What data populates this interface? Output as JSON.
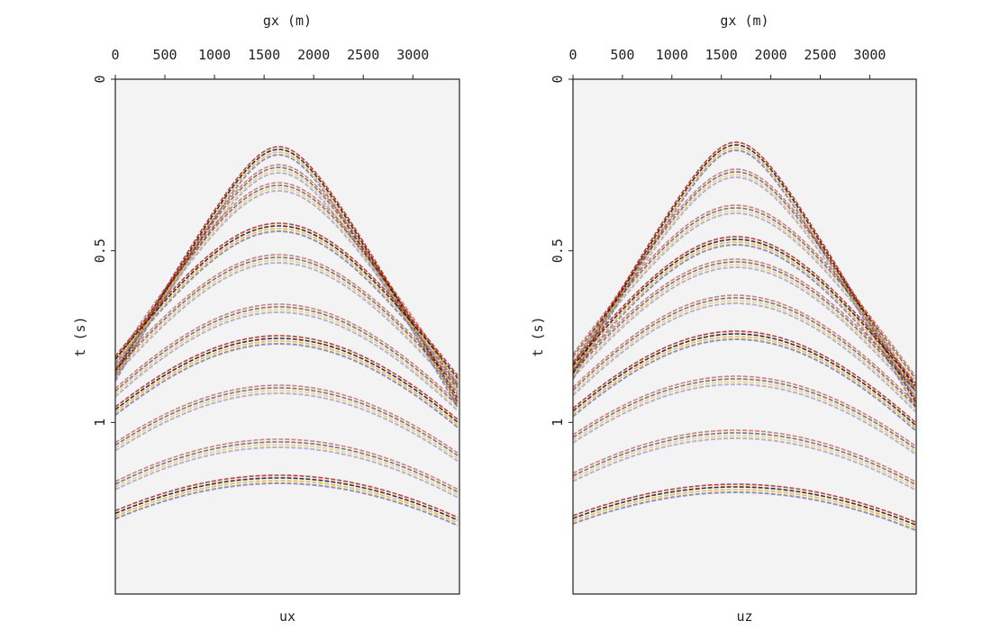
{
  "chart_data": [
    {
      "type": "seismic",
      "title": "ux",
      "xlabel": "gx (m)",
      "ylabel": "t (s)",
      "xlim": [
        0,
        3470
      ],
      "xticks": [
        0,
        500,
        1000,
        1500,
        2000,
        2500,
        3000
      ],
      "ylim": [
        0,
        1.5
      ],
      "yticks": [
        0,
        0.5,
        1
      ]
    },
    {
      "type": "seismic",
      "title": "uz",
      "xlabel": "gx (m)",
      "ylabel": "t (s)",
      "xlim": [
        0,
        3470
      ],
      "xticks": [
        0,
        500,
        1000,
        1500,
        2000,
        2500,
        3000
      ],
      "ylim": [
        0,
        1.5
      ],
      "yticks": [
        0,
        0.5,
        1
      ]
    }
  ]
}
